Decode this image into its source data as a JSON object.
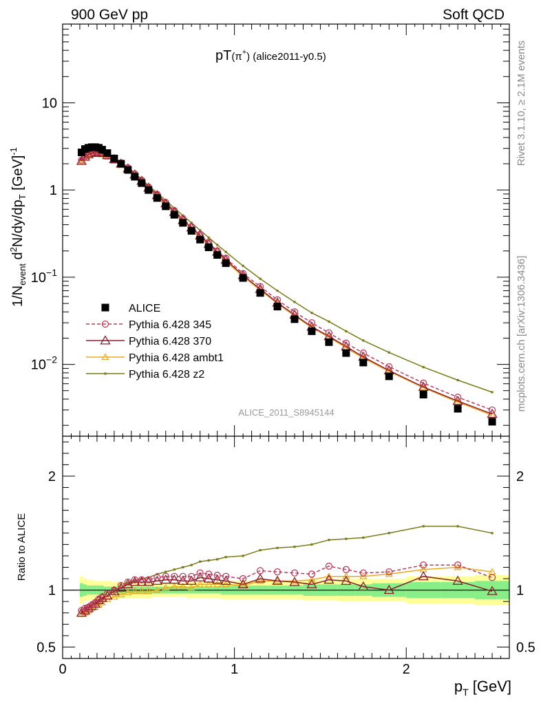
{
  "header": {
    "left": "900 GeV pp",
    "right": "Soft QCD"
  },
  "side_text": {
    "rivet": "Rivet 3.1.10, ≥ 2.1M events",
    "mcplots": "mcplots.cern.ch [arXiv:1306.3436]"
  },
  "chart_data": [
    {
      "type": "scatter",
      "panel": "main",
      "title": "pT(π⁺) (alice2011-y0.5)",
      "title_parts": {
        "main": "pT",
        "sub": "(π",
        "sup": "+",
        "close": ")",
        "rest": " (alice2011-y0.5)"
      },
      "ylabel": "1/N_event d²N/dy/dp_T [GeV]⁻¹",
      "ylabel_parts": {
        "a": "1/N",
        "b": "event",
        "c": " d",
        "d": "2",
        "e": "N/dy/dp",
        "f": "T",
        "g": " [GeV]",
        "h": "-1"
      },
      "watermark": "ALICE_2011_S8945144",
      "yscale": "log",
      "xlim": [
        0,
        2.6
      ],
      "ylim": [
        0.0015,
        80
      ],
      "yticks": [
        {
          "value": 10,
          "label": "10"
        },
        {
          "value": 1,
          "label": "1"
        },
        {
          "value": 0.1,
          "base": "10",
          "exp": "−1"
        },
        {
          "value": 0.01,
          "base": "10",
          "exp": "−2"
        }
      ],
      "legend_position": "bottom-left",
      "x": [
        0.11,
        0.13,
        0.15,
        0.17,
        0.19,
        0.21,
        0.23,
        0.26,
        0.3,
        0.34,
        0.38,
        0.42,
        0.46,
        0.5,
        0.55,
        0.6,
        0.65,
        0.7,
        0.75,
        0.8,
        0.85,
        0.9,
        0.95,
        1.05,
        1.15,
        1.25,
        1.35,
        1.45,
        1.55,
        1.65,
        1.75,
        1.9,
        2.1,
        2.3,
        2.5
      ],
      "series": [
        {
          "name": "ALICE",
          "color": "#000000",
          "marker": "square",
          "line": "none",
          "values": [
            2.7,
            2.95,
            3.05,
            3.1,
            3.1,
            3.05,
            2.9,
            2.65,
            2.3,
            2.0,
            1.7,
            1.42,
            1.2,
            1.0,
            0.81,
            0.65,
            0.52,
            0.42,
            0.34,
            0.27,
            0.22,
            0.18,
            0.145,
            0.098,
            0.066,
            0.046,
            0.033,
            0.024,
            0.018,
            0.0135,
            0.0105,
            0.0073,
            0.0045,
            0.0031,
            0.0022
          ]
        },
        {
          "name": "Pythia 6.428 345",
          "color": "#c0395c",
          "marker": "open-circle",
          "line": "dashed",
          "values": [
            2.2,
            2.45,
            2.6,
            2.7,
            2.75,
            2.75,
            2.7,
            2.55,
            2.3,
            2.05,
            1.8,
            1.53,
            1.3,
            1.08,
            0.89,
            0.72,
            0.58,
            0.47,
            0.38,
            0.31,
            0.25,
            0.2,
            0.165,
            0.11,
            0.078,
            0.055,
            0.04,
            0.03,
            0.023,
            0.0175,
            0.0135,
            0.0094,
            0.0061,
            0.0042,
            0.003
          ]
        },
        {
          "name": "Pythia 6.428 370",
          "color": "#8b1a2b",
          "marker": "open-triangle",
          "line": "solid",
          "values": [
            2.15,
            2.4,
            2.55,
            2.65,
            2.7,
            2.7,
            2.65,
            2.5,
            2.25,
            2.0,
            1.76,
            1.5,
            1.27,
            1.06,
            0.87,
            0.7,
            0.56,
            0.45,
            0.37,
            0.3,
            0.24,
            0.195,
            0.158,
            0.105,
            0.073,
            0.051,
            0.037,
            0.027,
            0.021,
            0.016,
            0.0122,
            0.0085,
            0.0055,
            0.0038,
            0.0027
          ]
        },
        {
          "name": "Pythia 6.428 ambt1",
          "color": "#f0a818",
          "marker": "open-triangle-small",
          "line": "solid",
          "values": [
            2.1,
            2.35,
            2.5,
            2.6,
            2.62,
            2.6,
            2.55,
            2.4,
            2.15,
            1.92,
            1.68,
            1.43,
            1.22,
            1.01,
            0.83,
            0.67,
            0.54,
            0.43,
            0.35,
            0.285,
            0.23,
            0.187,
            0.152,
            0.102,
            0.071,
            0.05,
            0.036,
            0.0265,
            0.0205,
            0.0155,
            0.0118,
            0.0083,
            0.0054,
            0.0037,
            0.0026
          ]
        },
        {
          "name": "Pythia 6.428 z2",
          "color": "#7a7a14",
          "marker": "dot",
          "line": "solid",
          "values": [
            2.2,
            2.45,
            2.6,
            2.7,
            2.72,
            2.72,
            2.66,
            2.52,
            2.3,
            2.06,
            1.82,
            1.56,
            1.33,
            1.12,
            0.93,
            0.76,
            0.62,
            0.51,
            0.42,
            0.345,
            0.285,
            0.235,
            0.195,
            0.135,
            0.096,
            0.07,
            0.052,
            0.039,
            0.031,
            0.024,
            0.0188,
            0.0137,
            0.0093,
            0.0066,
            0.0048
          ]
        }
      ]
    },
    {
      "type": "line",
      "panel": "ratio",
      "ylabel": "Ratio to ALICE",
      "xlabel": "p_T [GeV]",
      "xlabel_parts": {
        "a": "p",
        "b": "T",
        "c": " [GeV]"
      },
      "xlim": [
        0,
        2.6
      ],
      "ylim": [
        0.4,
        2.35
      ],
      "yticks": [
        {
          "value": 0.5,
          "label": "0.5"
        },
        {
          "value": 1,
          "label": "1"
        },
        {
          "value": 2,
          "label": "2"
        }
      ],
      "xticks": [
        {
          "value": 0,
          "label": "0"
        },
        {
          "value": 1,
          "label": "1"
        },
        {
          "value": 2,
          "label": "2"
        }
      ],
      "bands": {
        "edges": [
          0.1,
          0.12,
          0.14,
          0.16,
          0.18,
          0.2,
          0.22,
          0.24,
          0.28,
          0.32,
          0.36,
          0.4,
          0.44,
          0.48,
          0.52,
          0.58,
          0.62,
          0.68,
          0.72,
          0.78,
          0.82,
          0.88,
          0.92,
          0.98,
          1.1,
          1.2,
          1.3,
          1.4,
          1.5,
          1.6,
          1.7,
          1.8,
          2.0,
          2.2,
          2.4,
          2.6
        ],
        "yellow_half": [
          0.12,
          0.1,
          0.09,
          0.09,
          0.08,
          0.08,
          0.08,
          0.08,
          0.07,
          0.07,
          0.07,
          0.07,
          0.07,
          0.07,
          0.06,
          0.06,
          0.06,
          0.06,
          0.07,
          0.07,
          0.07,
          0.07,
          0.08,
          0.08,
          0.08,
          0.08,
          0.08,
          0.09,
          0.09,
          0.1,
          0.1,
          0.1,
          0.12,
          0.12,
          0.13
        ],
        "green_half": [
          0.06,
          0.05,
          0.04,
          0.04,
          0.04,
          0.04,
          0.04,
          0.03,
          0.03,
          0.03,
          0.03,
          0.03,
          0.03,
          0.03,
          0.03,
          0.03,
          0.03,
          0.03,
          0.03,
          0.03,
          0.03,
          0.03,
          0.04,
          0.04,
          0.04,
          0.04,
          0.04,
          0.05,
          0.05,
          0.05,
          0.05,
          0.06,
          0.07,
          0.07,
          0.08
        ]
      },
      "x": [
        0.11,
        0.13,
        0.15,
        0.17,
        0.19,
        0.21,
        0.23,
        0.26,
        0.3,
        0.34,
        0.38,
        0.42,
        0.46,
        0.5,
        0.55,
        0.6,
        0.65,
        0.7,
        0.75,
        0.8,
        0.85,
        0.9,
        0.95,
        1.05,
        1.15,
        1.25,
        1.35,
        1.45,
        1.55,
        1.65,
        1.75,
        1.9,
        2.1,
        2.3,
        2.5
      ],
      "series": [
        {
          "name": "Pythia 6.428 345",
          "color": "#c0395c",
          "marker": "open-circle",
          "line": "dashed",
          "values": [
            0.82,
            0.84,
            0.85,
            0.87,
            0.89,
            0.92,
            0.94,
            0.97,
            1.0,
            1.04,
            1.07,
            1.09,
            1.09,
            1.09,
            1.11,
            1.12,
            1.12,
            1.12,
            1.12,
            1.15,
            1.14,
            1.13,
            1.12,
            1.1,
            1.17,
            1.16,
            1.15,
            1.14,
            1.21,
            1.18,
            1.15,
            1.16,
            1.22,
            1.22,
            1.11
          ]
        },
        {
          "name": "Pythia 6.428 370",
          "color": "#8b1a2b",
          "marker": "open-triangle",
          "line": "solid",
          "values": [
            0.8,
            0.82,
            0.84,
            0.86,
            0.88,
            0.91,
            0.93,
            0.95,
            0.99,
            1.02,
            1.05,
            1.07,
            1.07,
            1.07,
            1.08,
            1.09,
            1.09,
            1.08,
            1.08,
            1.11,
            1.1,
            1.09,
            1.08,
            1.05,
            1.1,
            1.08,
            1.07,
            1.05,
            1.09,
            1.08,
            1.03,
            1.0,
            1.12,
            1.08,
            0.99
          ]
        },
        {
          "name": "Pythia 6.428 ambt1",
          "color": "#f0a818",
          "marker": "open-triangle-small",
          "line": "solid",
          "values": [
            0.79,
            0.8,
            0.82,
            0.84,
            0.85,
            0.87,
            0.89,
            0.92,
            0.94,
            0.96,
            0.98,
            0.99,
            0.99,
            0.99,
            1.0,
            1.02,
            1.03,
            1.03,
            1.02,
            1.05,
            1.05,
            1.05,
            1.05,
            1.04,
            1.08,
            1.08,
            1.08,
            1.09,
            1.12,
            1.12,
            1.12,
            1.14,
            1.18,
            1.2,
            1.16
          ]
        },
        {
          "name": "Pythia 6.428 z2",
          "color": "#7a7a14",
          "marker": "dot",
          "line": "solid",
          "values": [
            0.82,
            0.84,
            0.85,
            0.87,
            0.88,
            0.9,
            0.92,
            0.95,
            0.99,
            1.02,
            1.06,
            1.08,
            1.1,
            1.11,
            1.14,
            1.16,
            1.18,
            1.2,
            1.22,
            1.25,
            1.26,
            1.27,
            1.29,
            1.3,
            1.35,
            1.37,
            1.38,
            1.4,
            1.44,
            1.45,
            1.46,
            1.5,
            1.56,
            1.56,
            1.5
          ]
        }
      ]
    }
  ]
}
